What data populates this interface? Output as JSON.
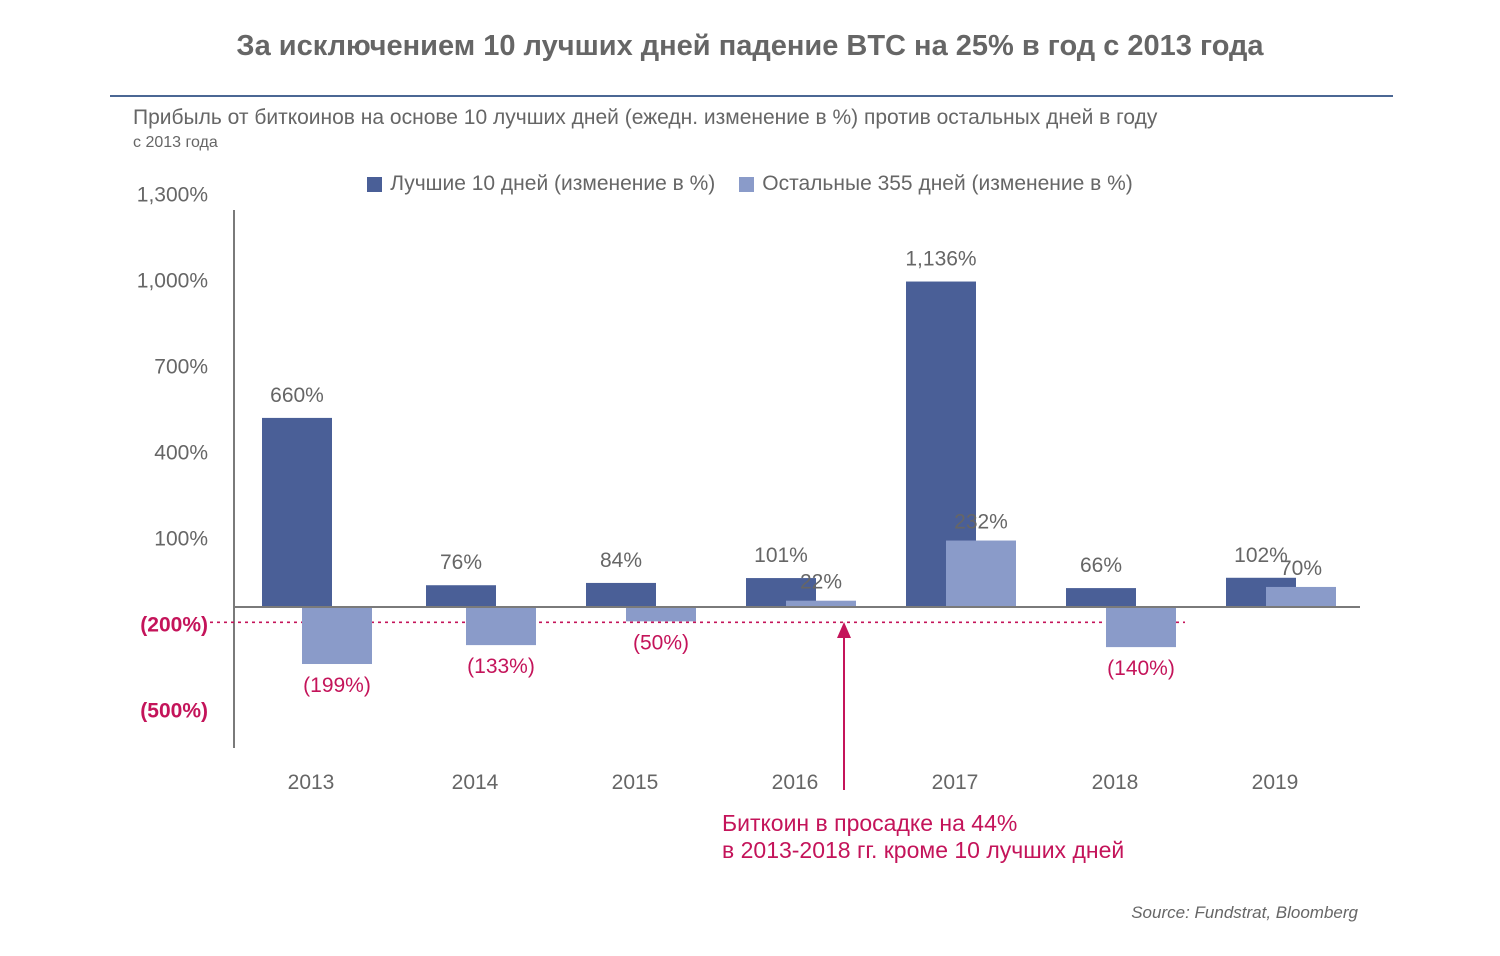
{
  "title": "За исключением 10 лучших дней падение BTC на 25% в год с 2013 года",
  "subtitle": "Прибыль от биткоинов на основе 10 лучших дней (ежедн. изменение в %) против остальных дней в году",
  "subtitle_sub": "с 2013 года",
  "source": "Source: Fundstrat, Bloomberg",
  "colors": {
    "best10": "#4a5f97",
    "rest": "#8a9bc9",
    "axis": "#7a7a7a",
    "text": "#666666",
    "negative": "#c4145a",
    "annotation": "#c4145a"
  },
  "annotation": {
    "line1": "Биткоин в просадке на 44%",
    "line2": "в 2013-2018 гг. кроме 10 лучших дней"
  },
  "chart_data": {
    "type": "bar",
    "categories": [
      "2013",
      "2014",
      "2015",
      "2016",
      "2017",
      "2018",
      "2019"
    ],
    "series": [
      {
        "name": "Лучшие 10 дней (изменение в %)",
        "values": [
          660,
          76,
          84,
          101,
          1136,
          66,
          102
        ],
        "labels": [
          "660%",
          "76%",
          "84%",
          "101%",
          "1,136%",
          "66%",
          "102%"
        ]
      },
      {
        "name": "Остальные 355 дней (изменение в %)",
        "values": [
          -199,
          -133,
          -50,
          22,
          232,
          -140,
          70
        ],
        "labels": [
          "(199%)",
          "(133%)",
          "(50%)",
          "22%",
          "232%",
          "(140%)",
          "70%"
        ]
      }
    ],
    "y_ticks": [
      {
        "value": 1300,
        "label": "1,300%"
      },
      {
        "value": 1000,
        "label": "1,000%"
      },
      {
        "value": 700,
        "label": "700%"
      },
      {
        "value": 400,
        "label": "400%"
      },
      {
        "value": 100,
        "label": "100%"
      },
      {
        "value": -200,
        "label": "(200%)"
      },
      {
        "value": -500,
        "label": "(500%)"
      }
    ],
    "ylim": [
      -500,
      1300
    ],
    "reference_line": {
      "value": -50,
      "style": "dashed"
    }
  }
}
